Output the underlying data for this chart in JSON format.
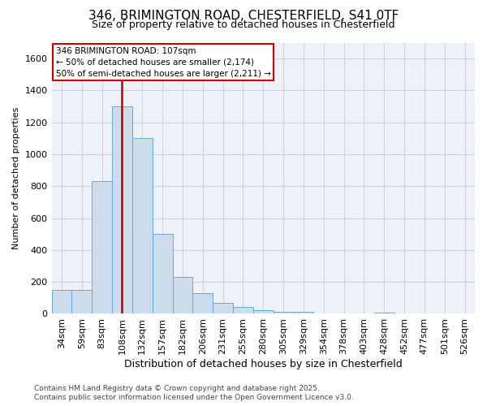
{
  "title_line1": "346, BRIMINGTON ROAD, CHESTERFIELD, S41 0TF",
  "title_line2": "Size of property relative to detached houses in Chesterfield",
  "xlabel": "Distribution of detached houses by size in Chesterfield",
  "ylabel": "Number of detached properties",
  "footer_line1": "Contains HM Land Registry data © Crown copyright and database right 2025.",
  "footer_line2": "Contains public sector information licensed under the Open Government Licence v3.0.",
  "categories": [
    "34sqm",
    "59sqm",
    "83sqm",
    "108sqm",
    "132sqm",
    "157sqm",
    "182sqm",
    "206sqm",
    "231sqm",
    "255sqm",
    "280sqm",
    "305sqm",
    "329sqm",
    "354sqm",
    "378sqm",
    "403sqm",
    "428sqm",
    "452sqm",
    "477sqm",
    "501sqm",
    "526sqm"
  ],
  "values": [
    150,
    150,
    830,
    1300,
    1100,
    500,
    230,
    130,
    70,
    45,
    25,
    12,
    10,
    0,
    0,
    0,
    8,
    0,
    0,
    0,
    0
  ],
  "bar_color": "#ccdcec",
  "bar_edge_color": "#6aaad4",
  "grid_color": "#c8d4e0",
  "vline_color": "#c00000",
  "vline_x": 3.0,
  "annotation_text_line1": "346 BRIMINGTON ROAD: 107sqm",
  "annotation_text_line2": "← 50% of detached houses are smaller (2,174)",
  "annotation_text_line3": "50% of semi-detached houses are larger (2,211) →",
  "annotation_box_color": "#cc0000",
  "ylim": [
    0,
    1700
  ],
  "yticks": [
    0,
    200,
    400,
    600,
    800,
    1000,
    1200,
    1400,
    1600
  ],
  "bg_color": "#eef2f8",
  "title1_fontsize": 11,
  "title2_fontsize": 9,
  "xlabel_fontsize": 9,
  "ylabel_fontsize": 8,
  "tick_fontsize": 8,
  "footer_fontsize": 6.5
}
